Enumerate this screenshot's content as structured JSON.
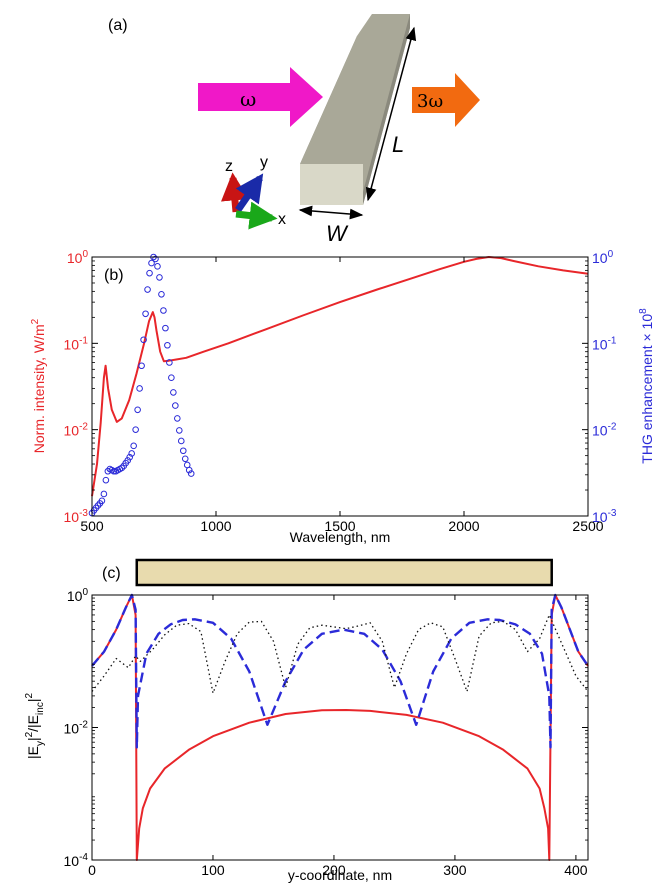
{
  "panel_a": {
    "label": "(a)",
    "omega_label": "ω",
    "third_harmonic_label": "3ω",
    "length_label": "L",
    "width_label": "W",
    "axes": {
      "z": "z",
      "y": "y",
      "x": "x"
    },
    "colors": {
      "input_arrow": "#f018c8",
      "output_arrow": "#f26a10",
      "nanorod": "#a9a898"
    }
  },
  "chart_data": [
    {
      "type": "line",
      "panel_label": "(b)",
      "xlabel": "Wavelength, nm",
      "ylabel_left": "Norm. intensity, W/m",
      "ylabel_left_sup": "2",
      "ylabel_right": "THG enhancement × 10",
      "ylabel_right_sup": "8",
      "xlim": [
        500,
        2500
      ],
      "ylim": [
        0.001,
        1
      ],
      "yscale": "log",
      "x_ticks": [
        "500",
        "1000",
        "1500",
        "2000",
        "2500"
      ],
      "y_ticks": [
        {
          "base": "10",
          "exp": "0"
        },
        {
          "base": "10",
          "exp": "-1"
        },
        {
          "base": "10",
          "exp": "-2"
        },
        {
          "base": "10",
          "exp": "-3"
        }
      ],
      "series": [
        {
          "style": "solid-line",
          "color": "#e8262a",
          "x": [
            500,
            520,
            535,
            548,
            555,
            565,
            580,
            600,
            620,
            650,
            680,
            710,
            730,
            745,
            752,
            760,
            775,
            790,
            810,
            840,
            880,
            950,
            1050,
            1200,
            1350,
            1500,
            1650,
            1800,
            1900,
            2000,
            2050,
            2100,
            2150,
            2200,
            2300,
            2400,
            2500
          ],
          "y": [
            0.0017,
            0.004,
            0.012,
            0.04,
            0.055,
            0.03,
            0.017,
            0.0123,
            0.0135,
            0.022,
            0.045,
            0.1,
            0.18,
            0.23,
            0.2,
            0.14,
            0.08,
            0.062,
            0.063,
            0.065,
            0.068,
            0.08,
            0.1,
            0.145,
            0.21,
            0.3,
            0.42,
            0.58,
            0.72,
            0.88,
            0.95,
            1.0,
            0.97,
            0.9,
            0.78,
            0.7,
            0.64
          ]
        },
        {
          "style": "open-circles",
          "color": "#2b2bd8",
          "x": [
            500,
            508,
            516,
            524,
            532,
            540,
            548,
            556,
            564,
            572,
            580,
            588,
            596,
            604,
            612,
            620,
            628,
            636,
            644,
            652,
            660,
            668,
            676,
            684,
            692,
            700,
            708,
            716,
            724,
            732,
            740,
            748,
            756,
            764,
            772,
            780,
            788,
            796,
            804,
            812,
            820,
            828,
            836,
            844,
            852,
            860,
            868,
            876,
            884,
            892,
            900
          ],
          "y": [
            0.00108,
            0.00116,
            0.00124,
            0.00132,
            0.0014,
            0.0015,
            0.0018,
            0.0026,
            0.0033,
            0.0035,
            0.0034,
            0.0033,
            0.0033,
            0.0034,
            0.0035,
            0.0036,
            0.0038,
            0.0041,
            0.0044,
            0.0048,
            0.0053,
            0.0065,
            0.01,
            0.017,
            0.03,
            0.055,
            0.11,
            0.22,
            0.42,
            0.65,
            0.85,
            1.0,
            0.95,
            0.78,
            0.58,
            0.37,
            0.24,
            0.15,
            0.095,
            0.06,
            0.04,
            0.027,
            0.019,
            0.0135,
            0.0098,
            0.0074,
            0.0057,
            0.0046,
            0.0039,
            0.0034,
            0.0031
          ]
        }
      ]
    },
    {
      "type": "line",
      "panel_label": "(c)",
      "xlabel": "y-coordinate, nm",
      "ylabel": "|E",
      "ylabel_sub1": "y",
      "ylabel_mid": "|",
      "ylabel_sup1": "2",
      "ylabel_mid2": "/|E",
      "ylabel_sub2": "inc",
      "ylabel_end": "|",
      "ylabel_sup2": "2",
      "xlim": [
        0,
        410
      ],
      "ylim": [
        0.0001,
        1
      ],
      "yscale": "log",
      "x_ticks": [
        "0",
        "100",
        "200",
        "300",
        "400"
      ],
      "y_ticks": [
        {
          "base": "10",
          "exp": "0"
        },
        {
          "base": "10",
          "exp": "-2"
        },
        {
          "base": "10",
          "exp": "-4"
        }
      ],
      "structure_bar": {
        "x_start": 37,
        "x_end": 380,
        "color": "#e8dbae"
      },
      "series": [
        {
          "style": "solid",
          "color": "#e8262a",
          "x": [
            0,
            10,
            20,
            28,
            33,
            36,
            37,
            39,
            42,
            48,
            60,
            80,
            100,
            130,
            160,
            190,
            210,
            230,
            260,
            290,
            320,
            340,
            360,
            370,
            374,
            377,
            378,
            380,
            383,
            388,
            395,
            402,
            410
          ],
          "y": [
            0.085,
            0.14,
            0.3,
            0.65,
            1.0,
            0.5,
            0.0001,
            0.0003,
            0.0006,
            0.0012,
            0.0024,
            0.0046,
            0.0074,
            0.0118,
            0.016,
            0.0182,
            0.0184,
            0.0178,
            0.0155,
            0.0118,
            0.0074,
            0.0046,
            0.0024,
            0.0012,
            0.0006,
            0.0003,
            0.0001,
            0.5,
            1.0,
            0.65,
            0.3,
            0.14,
            0.085
          ]
        },
        {
          "style": "dashed",
          "color": "#2b2bd8",
          "x": [
            0,
            10,
            20,
            28,
            33,
            36,
            37,
            38,
            45,
            55,
            65,
            75,
            85,
            100,
            115,
            130,
            145,
            160,
            175,
            190,
            208,
            225,
            240,
            255,
            268,
            282,
            297,
            312,
            327,
            337,
            350,
            362,
            372,
            378,
            379,
            380,
            383,
            388,
            395,
            402,
            410
          ],
          "y": [
            0.085,
            0.14,
            0.3,
            0.65,
            1.0,
            0.6,
            0.005,
            0.03,
            0.13,
            0.26,
            0.36,
            0.42,
            0.43,
            0.38,
            0.22,
            0.07,
            0.011,
            0.05,
            0.15,
            0.26,
            0.3,
            0.26,
            0.15,
            0.05,
            0.011,
            0.07,
            0.22,
            0.38,
            0.43,
            0.42,
            0.36,
            0.26,
            0.13,
            0.03,
            0.005,
            0.6,
            1.0,
            0.65,
            0.3,
            0.14,
            0.085
          ]
        },
        {
          "style": "dotted",
          "color": "#111111",
          "x": [
            0,
            10,
            20,
            30,
            36,
            40,
            50,
            60,
            70,
            80,
            90,
            100,
            110,
            120,
            130,
            140,
            150,
            160,
            170,
            180,
            190,
            200,
            210,
            220,
            230,
            240,
            250,
            260,
            270,
            280,
            290,
            300,
            310,
            320,
            330,
            340,
            350,
            360,
            370,
            378,
            384,
            392,
            400,
            410
          ],
          "y": [
            0.035,
            0.06,
            0.11,
            0.08,
            0.12,
            0.1,
            0.15,
            0.25,
            0.35,
            0.37,
            0.28,
            0.033,
            0.1,
            0.26,
            0.39,
            0.4,
            0.2,
            0.04,
            0.18,
            0.32,
            0.35,
            0.33,
            0.31,
            0.34,
            0.38,
            0.2,
            0.04,
            0.13,
            0.3,
            0.38,
            0.33,
            0.11,
            0.035,
            0.24,
            0.38,
            0.4,
            0.3,
            0.14,
            0.22,
            0.5,
            0.28,
            0.13,
            0.06,
            0.035
          ]
        }
      ]
    }
  ]
}
